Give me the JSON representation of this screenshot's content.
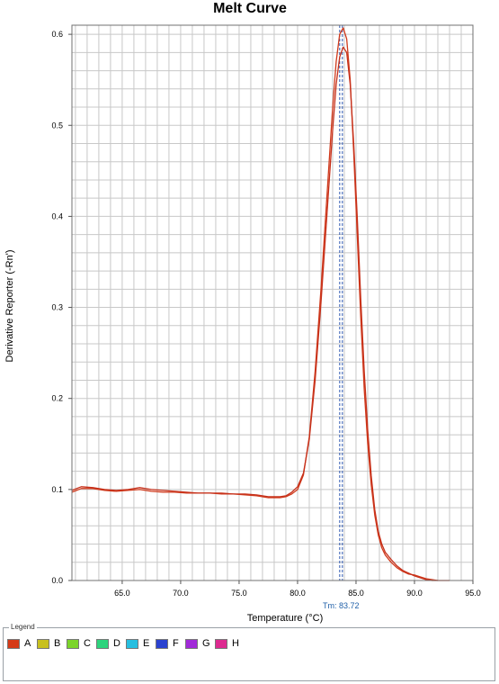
{
  "chart_data": {
    "type": "line",
    "title": "Melt Curve",
    "xlabel": "Temperature (°C)",
    "ylabel": "Derivative Reporter (-Rn')",
    "xlim": [
      60.7,
      95.0
    ],
    "ylim": [
      0.0,
      0.61
    ],
    "x_ticks": [
      "65.0",
      "70.0",
      "75.0",
      "80.0",
      "85.0",
      "90.0",
      "95.0"
    ],
    "x_tick_values": [
      65,
      70,
      75,
      80,
      85,
      90,
      95
    ],
    "y_ticks": [
      "0.0",
      "0.1",
      "0.2",
      "0.3",
      "0.4",
      "0.5",
      "0.6"
    ],
    "y_tick_values": [
      0.0,
      0.1,
      0.2,
      0.3,
      0.4,
      0.5,
      0.6
    ],
    "grid": true,
    "tm_label": "Tm: 83.72",
    "tm_value": 83.72,
    "series": [
      {
        "color": "#d03a1c",
        "x": [
          60.7,
          61.5,
          62.5,
          63.5,
          64.5,
          65.5,
          66.5,
          67.5,
          68.5,
          69.5,
          70.5,
          71.5,
          72.5,
          73.5,
          74.5,
          75.5,
          76.5,
          77.5,
          78.5,
          79.0,
          79.5,
          80.0,
          80.5,
          81.0,
          81.5,
          82.0,
          82.5,
          83.0,
          83.3,
          83.6,
          83.9,
          84.2,
          84.5,
          84.8,
          85.1,
          85.4,
          85.7,
          86.0,
          86.3,
          86.6,
          86.9,
          87.2,
          87.5,
          88.0,
          88.5,
          89.0,
          89.5,
          90.0,
          90.5,
          91.0,
          91.5,
          92.0,
          92.5,
          93.0
        ],
        "y": [
          0.097,
          0.101,
          0.101,
          0.099,
          0.098,
          0.099,
          0.1,
          0.098,
          0.097,
          0.097,
          0.096,
          0.096,
          0.096,
          0.095,
          0.095,
          0.094,
          0.093,
          0.091,
          0.091,
          0.092,
          0.095,
          0.1,
          0.116,
          0.158,
          0.23,
          0.32,
          0.42,
          0.52,
          0.57,
          0.6,
          0.607,
          0.595,
          0.55,
          0.47,
          0.38,
          0.29,
          0.21,
          0.15,
          0.105,
          0.072,
          0.05,
          0.036,
          0.028,
          0.02,
          0.014,
          0.01,
          0.007,
          0.006,
          0.004,
          0.002,
          0.001,
          0.0,
          0.0,
          0.0
        ]
      },
      {
        "color": "#c6301a",
        "x": [
          60.7,
          61.5,
          62.5,
          63.5,
          64.5,
          65.5,
          66.5,
          67.5,
          68.5,
          69.5,
          70.5,
          71.5,
          72.5,
          73.5,
          74.5,
          75.5,
          76.5,
          77.5,
          78.5,
          79.0,
          79.5,
          80.0,
          80.5,
          81.0,
          81.5,
          82.0,
          82.5,
          83.0,
          83.3,
          83.6,
          83.9,
          84.2,
          84.5,
          84.8,
          85.1,
          85.4,
          85.7,
          86.0,
          86.3,
          86.6,
          86.9,
          87.2,
          87.5,
          88.0,
          88.5,
          89.0,
          89.5,
          90.0,
          90.5,
          91.0,
          91.5,
          92.0
        ],
        "y": [
          0.099,
          0.103,
          0.102,
          0.1,
          0.099,
          0.1,
          0.102,
          0.1,
          0.099,
          0.098,
          0.097,
          0.096,
          0.096,
          0.096,
          0.095,
          0.095,
          0.094,
          0.092,
          0.092,
          0.093,
          0.097,
          0.103,
          0.118,
          0.155,
          0.22,
          0.305,
          0.4,
          0.495,
          0.545,
          0.575,
          0.586,
          0.58,
          0.545,
          0.48,
          0.4,
          0.31,
          0.23,
          0.165,
          0.115,
          0.078,
          0.054,
          0.04,
          0.031,
          0.023,
          0.016,
          0.011,
          0.008,
          0.005,
          0.003,
          0.001,
          0.0,
          0.0
        ]
      }
    ],
    "legend": [
      {
        "label": "A",
        "color": "#d53a17"
      },
      {
        "label": "B",
        "color": "#c8c01f"
      },
      {
        "label": "C",
        "color": "#7bd42a"
      },
      {
        "label": "D",
        "color": "#2ed47d"
      },
      {
        "label": "E",
        "color": "#27bfe0"
      },
      {
        "label": "F",
        "color": "#2a42d0"
      },
      {
        "label": "G",
        "color": "#a12ad8"
      },
      {
        "label": "H",
        "color": "#dd2a90"
      }
    ],
    "legend_title": "Legend"
  }
}
